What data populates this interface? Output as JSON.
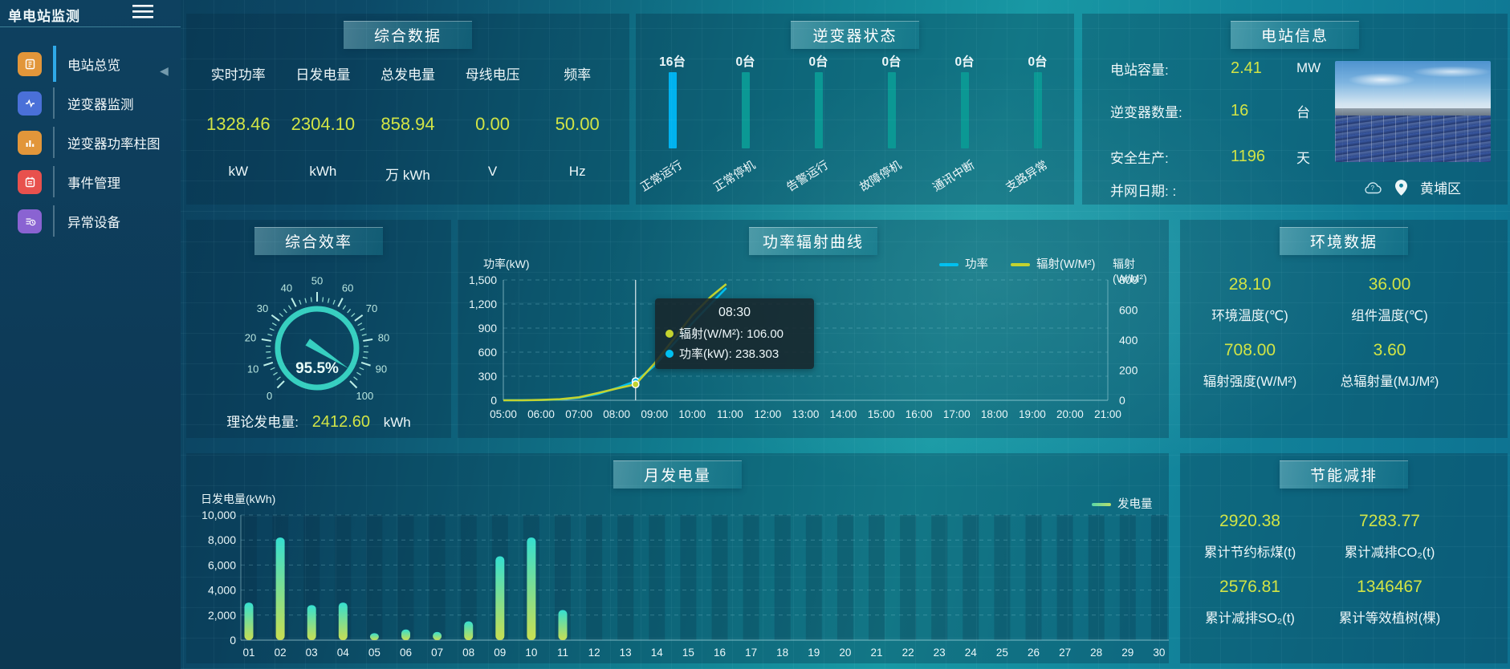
{
  "app": {
    "title": "单电站监测"
  },
  "colors": {
    "value_yellow": "#d2e445",
    "bar_active": "#00b2ef",
    "bar_idle": "#0b9894",
    "line_power": "#00c0f0",
    "line_radiation": "#c3d32f",
    "gauge": "#37cfc0"
  },
  "sidebar": {
    "items": [
      {
        "label": "电站总览",
        "icon": "overview-icon",
        "color": "#e2963a",
        "active": true
      },
      {
        "label": "逆变器监测",
        "icon": "waveform-icon",
        "color": "#4a70d8",
        "active": false
      },
      {
        "label": "逆变器功率柱图",
        "icon": "power-bars-icon",
        "color": "#e2963a",
        "active": false
      },
      {
        "label": "事件管理",
        "icon": "event-icon",
        "color": "#e8514d",
        "active": false
      },
      {
        "label": "异常设备",
        "icon": "abnormal-device-icon",
        "color": "#8a63d2",
        "active": false
      }
    ]
  },
  "panels": {
    "summary": {
      "title": "综合数据",
      "stats": [
        {
          "label": "实时功率",
          "value": "1328.46",
          "unit": "kW"
        },
        {
          "label": "日发电量",
          "value": "2304.10",
          "unit": "kWh"
        },
        {
          "label": "总发电量",
          "value": "858.94",
          "unit": "万 kWh"
        },
        {
          "label": "母线电压",
          "value": "0.00",
          "unit": "V"
        },
        {
          "label": "频率",
          "value": "50.00",
          "unit": "Hz"
        }
      ]
    },
    "inverter_status": {
      "title": "逆变器状态",
      "bars": [
        {
          "count": "16台",
          "label": "正常运行",
          "color": "#00b2ef"
        },
        {
          "count": "0台",
          "label": "正常停机",
          "color": "#0b9894"
        },
        {
          "count": "0台",
          "label": "告警运行",
          "color": "#0b9894"
        },
        {
          "count": "0台",
          "label": "故障停机",
          "color": "#0b9894"
        },
        {
          "count": "0台",
          "label": "通讯中断",
          "color": "#0b9894"
        },
        {
          "count": "0台",
          "label": "支路异常",
          "color": "#0b9894"
        }
      ]
    },
    "station_info": {
      "title": "电站信息",
      "rows": [
        {
          "label": "电站容量:",
          "value": "2.41",
          "unit": "MW"
        },
        {
          "label": "逆变器数量:",
          "value": "16",
          "unit": "台"
        },
        {
          "label": "安全生产:",
          "value": "1196",
          "unit": "天"
        },
        {
          "label": "并网日期: :",
          "value": "",
          "unit": ""
        }
      ],
      "location": "黄埔区"
    },
    "efficiency": {
      "title": "综合效率",
      "theory_label": "理论发电量:",
      "theory_value": "2412.60",
      "theory_unit": "kWh"
    },
    "power_curve": {
      "title": "功率辐射曲线"
    },
    "environment": {
      "title": "环境数据",
      "stats": [
        {
          "value": "28.10",
          "label": "环境温度(℃)"
        },
        {
          "value": "36.00",
          "label": "组件温度(℃)"
        },
        {
          "value": "708.00",
          "label": "辐射强度(W/M²)"
        },
        {
          "value": "3.60",
          "label": "总辐射量(MJ/M²)"
        }
      ]
    },
    "monthly": {
      "title": "月发电量"
    },
    "saving": {
      "title": "节能减排",
      "stats": [
        {
          "value": "2920.38",
          "label": "累计节约标煤(t)"
        },
        {
          "value": "7283.77",
          "label": "累计减排CO₂(t)"
        },
        {
          "value": "2576.81",
          "label": "累计减排SO₂(t)"
        },
        {
          "value": "1346467",
          "label": "累计等效植树(棵)"
        }
      ]
    }
  },
  "chart_data": [
    {
      "type": "gauge",
      "title": "综合效率",
      "value": 95.5,
      "value_label": "95.5%",
      "min": 0,
      "max": 100,
      "tick_labels": [
        0,
        10,
        20,
        30,
        40,
        50,
        60,
        70,
        80,
        90,
        100
      ]
    },
    {
      "type": "line",
      "title": "功率辐射曲线",
      "x_ticks": [
        "05:00",
        "06:00",
        "07:00",
        "08:00",
        "09:00",
        "10:00",
        "11:00",
        "12:00",
        "13:00",
        "14:00",
        "15:00",
        "16:00",
        "17:00",
        "18:00",
        "19:00",
        "20:00",
        "21:00"
      ],
      "y_left": {
        "name": "功率(kW)",
        "min": 0,
        "max": 1500,
        "step": 300
      },
      "y_right": {
        "name": "辐射(W/M²)",
        "min": 0,
        "max": 800,
        "step": 200
      },
      "series": [
        {
          "name": "功率",
          "color": "#00c0f0",
          "axis": "left",
          "points": [
            [
              5,
              0
            ],
            [
              5.5,
              1
            ],
            [
              6,
              3
            ],
            [
              6.5,
              10
            ],
            [
              7,
              32
            ],
            [
              7.5,
              78
            ],
            [
              8,
              152
            ],
            [
              8.5,
              238.303
            ],
            [
              9,
              430
            ],
            [
              9.5,
              700
            ],
            [
              10,
              960
            ],
            [
              10.5,
              1205
            ],
            [
              10.9,
              1400
            ]
          ]
        },
        {
          "name": "辐射(W/M²)",
          "color": "#c3d32f",
          "axis": "right",
          "points": [
            [
              5,
              0
            ],
            [
              5.5,
              0
            ],
            [
              6,
              2
            ],
            [
              6.5,
              7
            ],
            [
              7,
              20
            ],
            [
              7.5,
              48
            ],
            [
              8,
              78
            ],
            [
              8.5,
              106
            ],
            [
              9,
              245
            ],
            [
              9.5,
              405
            ],
            [
              10,
              565
            ],
            [
              10.5,
              690
            ],
            [
              10.9,
              773
            ]
          ]
        }
      ],
      "crosshair_hour": 8.5,
      "tooltip": {
        "time": "08:30",
        "rows": [
          {
            "color": "#c3d32f",
            "label": "辐射(W/M²)",
            "value": "106.00"
          },
          {
            "color": "#00c0f0",
            "label": "功率(kW)",
            "value": "238.303"
          }
        ]
      }
    },
    {
      "type": "bar",
      "title": "逆变器状态",
      "unit": "台",
      "categories": [
        "正常运行",
        "正常停机",
        "告警运行",
        "故障停机",
        "通讯中断",
        "支路异常"
      ],
      "values": [
        16,
        0,
        0,
        0,
        0,
        0
      ]
    },
    {
      "type": "bar",
      "title": "月发电量",
      "ylabel": "日发电量(kWh)",
      "legend": "发电量",
      "categories": [
        "01",
        "02",
        "03",
        "04",
        "05",
        "06",
        "07",
        "08",
        "09",
        "10",
        "11",
        "12",
        "13",
        "14",
        "15",
        "16",
        "17",
        "18",
        "19",
        "20",
        "21",
        "22",
        "23",
        "24",
        "25",
        "26",
        "27",
        "28",
        "29",
        "30"
      ],
      "values": [
        3000,
        8200,
        2800,
        3000,
        550,
        850,
        650,
        1500,
        6700,
        8200,
        2400,
        0,
        0,
        0,
        0,
        0,
        0,
        0,
        0,
        0,
        0,
        0,
        0,
        0,
        0,
        0,
        0,
        0,
        0,
        0
      ],
      "ylim": [
        0,
        10000
      ],
      "step": 2000
    }
  ]
}
